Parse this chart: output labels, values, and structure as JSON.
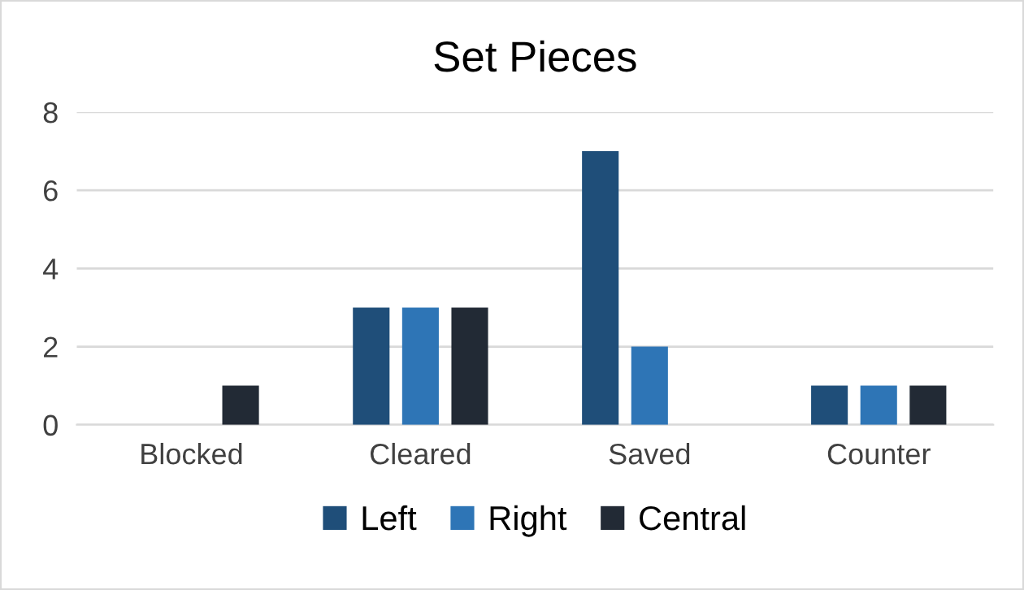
{
  "chart_data": {
    "type": "bar",
    "title": "Set Pieces",
    "categories": [
      "Blocked",
      "Cleared",
      "Saved",
      "Counter"
    ],
    "series": [
      {
        "name": "Left",
        "color": "#1f4e79",
        "values": [
          0,
          3,
          7,
          1
        ]
      },
      {
        "name": "Right",
        "color": "#2e75b6",
        "values": [
          0,
          3,
          2,
          1
        ]
      },
      {
        "name": "Central",
        "color": "#222a35",
        "values": [
          1,
          3,
          0,
          1
        ]
      }
    ],
    "ylim": [
      0,
      8
    ],
    "yticks": [
      0,
      2,
      4,
      6,
      8
    ],
    "grid": "y",
    "legend": "bottom"
  }
}
